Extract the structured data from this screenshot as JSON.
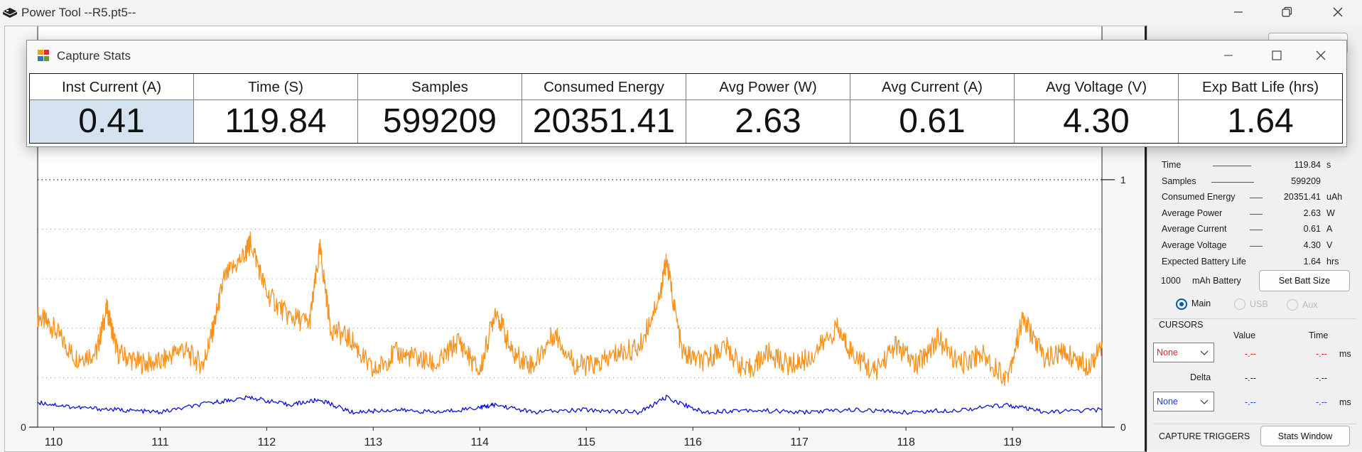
{
  "window": {
    "title": "Power Tool --R5.pt5--"
  },
  "stats_window": {
    "title": "Capture Stats",
    "columns": [
      {
        "header": "Inst Current (A)",
        "value": "0.41"
      },
      {
        "header": "Time (S)",
        "value": "119.84"
      },
      {
        "header": "Samples",
        "value": "599209"
      },
      {
        "header": "Consumed Energy",
        "value": "20351.41"
      },
      {
        "header": "Avg Power (W)",
        "value": "2.63"
      },
      {
        "header": "Avg Current (A)",
        "value": "0.61"
      },
      {
        "header": "Avg Voltage (V)",
        "value": "4.30"
      },
      {
        "header": "Exp Batt Life (hrs)",
        "value": "1.64"
      }
    ]
  },
  "sidebar": {
    "stats": [
      {
        "label": "Time",
        "value": "119.84",
        "unit": "s"
      },
      {
        "label": "Samples",
        "value": "599209",
        "unit": ""
      },
      {
        "label": "Consumed Energy",
        "value": "20351.41",
        "unit": "uAh"
      },
      {
        "label": "Average Power",
        "value": "2.63",
        "unit": "W"
      },
      {
        "label": "Average Current",
        "value": "0.61",
        "unit": "A"
      },
      {
        "label": "Average Voltage",
        "value": "4.30",
        "unit": "V"
      },
      {
        "label": "Expected Battery Life",
        "value": "1.64",
        "unit": "hrs"
      }
    ],
    "battery": {
      "size": "1000",
      "unit_label": "mAh Battery",
      "set_button": "Set Batt Size"
    },
    "channels": [
      {
        "label": "Main",
        "selected": true
      },
      {
        "label": "USB",
        "selected": false
      },
      {
        "label": "Aux",
        "selected": false
      }
    ],
    "cursors": {
      "title": "CURSORS",
      "value_header": "Value",
      "time_header": "Time",
      "delta_label": "Delta",
      "combo1": "None",
      "combo2": "None",
      "row1_value": "-.--",
      "row1_time": "-.--",
      "delta_value": "-.--",
      "delta_time": "-.--",
      "row2_value": "-.--",
      "row2_time": "-.--",
      "ms_unit": "ms",
      "cursor1_color": "#e02020",
      "cursor2_color": "#1a3adf"
    },
    "triggers": {
      "title": "CAPTURE TRIGGERS",
      "stats_button": "Stats Window"
    }
  },
  "colors": {
    "current_trace": "#f7931e",
    "secondary_trace": "#0b10d6",
    "selected_cell": "#d5e3f1"
  },
  "chart_data": {
    "type": "line",
    "x_ticks": [
      "110",
      "111",
      "112",
      "113",
      "114",
      "115",
      "116",
      "117",
      "118",
      "119"
    ],
    "xlim": [
      109.85,
      119.84
    ],
    "y_right_ticks": [
      "0",
      "1"
    ],
    "y_left_ticks": [
      "0"
    ],
    "grid": true,
    "series": [
      {
        "color": "#f7931e",
        "x": [
          109.85,
          110.0,
          110.2,
          110.4,
          110.5,
          110.6,
          110.8,
          111.0,
          111.2,
          111.4,
          111.5,
          111.6,
          111.8,
          111.85,
          112.0,
          112.2,
          112.4,
          112.5,
          112.6,
          112.8,
          113.0,
          113.2,
          113.4,
          113.6,
          113.8,
          114.0,
          114.15,
          114.3,
          114.5,
          114.7,
          114.9,
          115.1,
          115.3,
          115.5,
          115.7,
          115.75,
          115.9,
          116.1,
          116.3,
          116.5,
          116.7,
          116.9,
          117.1,
          117.35,
          117.5,
          117.7,
          117.9,
          118.1,
          118.3,
          118.5,
          118.7,
          118.95,
          119.1,
          119.3,
          119.5,
          119.7,
          119.84
        ],
        "y": [
          0.45,
          0.4,
          0.28,
          0.3,
          0.48,
          0.3,
          0.26,
          0.26,
          0.32,
          0.25,
          0.4,
          0.6,
          0.7,
          0.75,
          0.54,
          0.45,
          0.42,
          0.72,
          0.4,
          0.35,
          0.22,
          0.3,
          0.28,
          0.25,
          0.35,
          0.22,
          0.48,
          0.3,
          0.25,
          0.38,
          0.25,
          0.25,
          0.3,
          0.32,
          0.55,
          0.68,
          0.3,
          0.26,
          0.33,
          0.22,
          0.3,
          0.25,
          0.28,
          0.4,
          0.3,
          0.22,
          0.33,
          0.25,
          0.36,
          0.25,
          0.3,
          0.2,
          0.44,
          0.28,
          0.3,
          0.25,
          0.32
        ]
      },
      {
        "color": "#0b10d6",
        "x": [
          109.85,
          110.2,
          110.6,
          111.0,
          111.5,
          111.85,
          112.2,
          112.5,
          112.8,
          113.2,
          113.6,
          114.0,
          114.15,
          114.5,
          115.0,
          115.5,
          115.75,
          116.1,
          116.5,
          117.0,
          117.5,
          118.0,
          118.5,
          118.95,
          119.3,
          119.84
        ],
        "y": [
          0.1,
          0.08,
          0.07,
          0.06,
          0.1,
          0.12,
          0.09,
          0.11,
          0.06,
          0.07,
          0.06,
          0.08,
          0.09,
          0.06,
          0.07,
          0.06,
          0.12,
          0.06,
          0.07,
          0.06,
          0.07,
          0.06,
          0.07,
          0.09,
          0.06,
          0.07
        ]
      }
    ]
  }
}
